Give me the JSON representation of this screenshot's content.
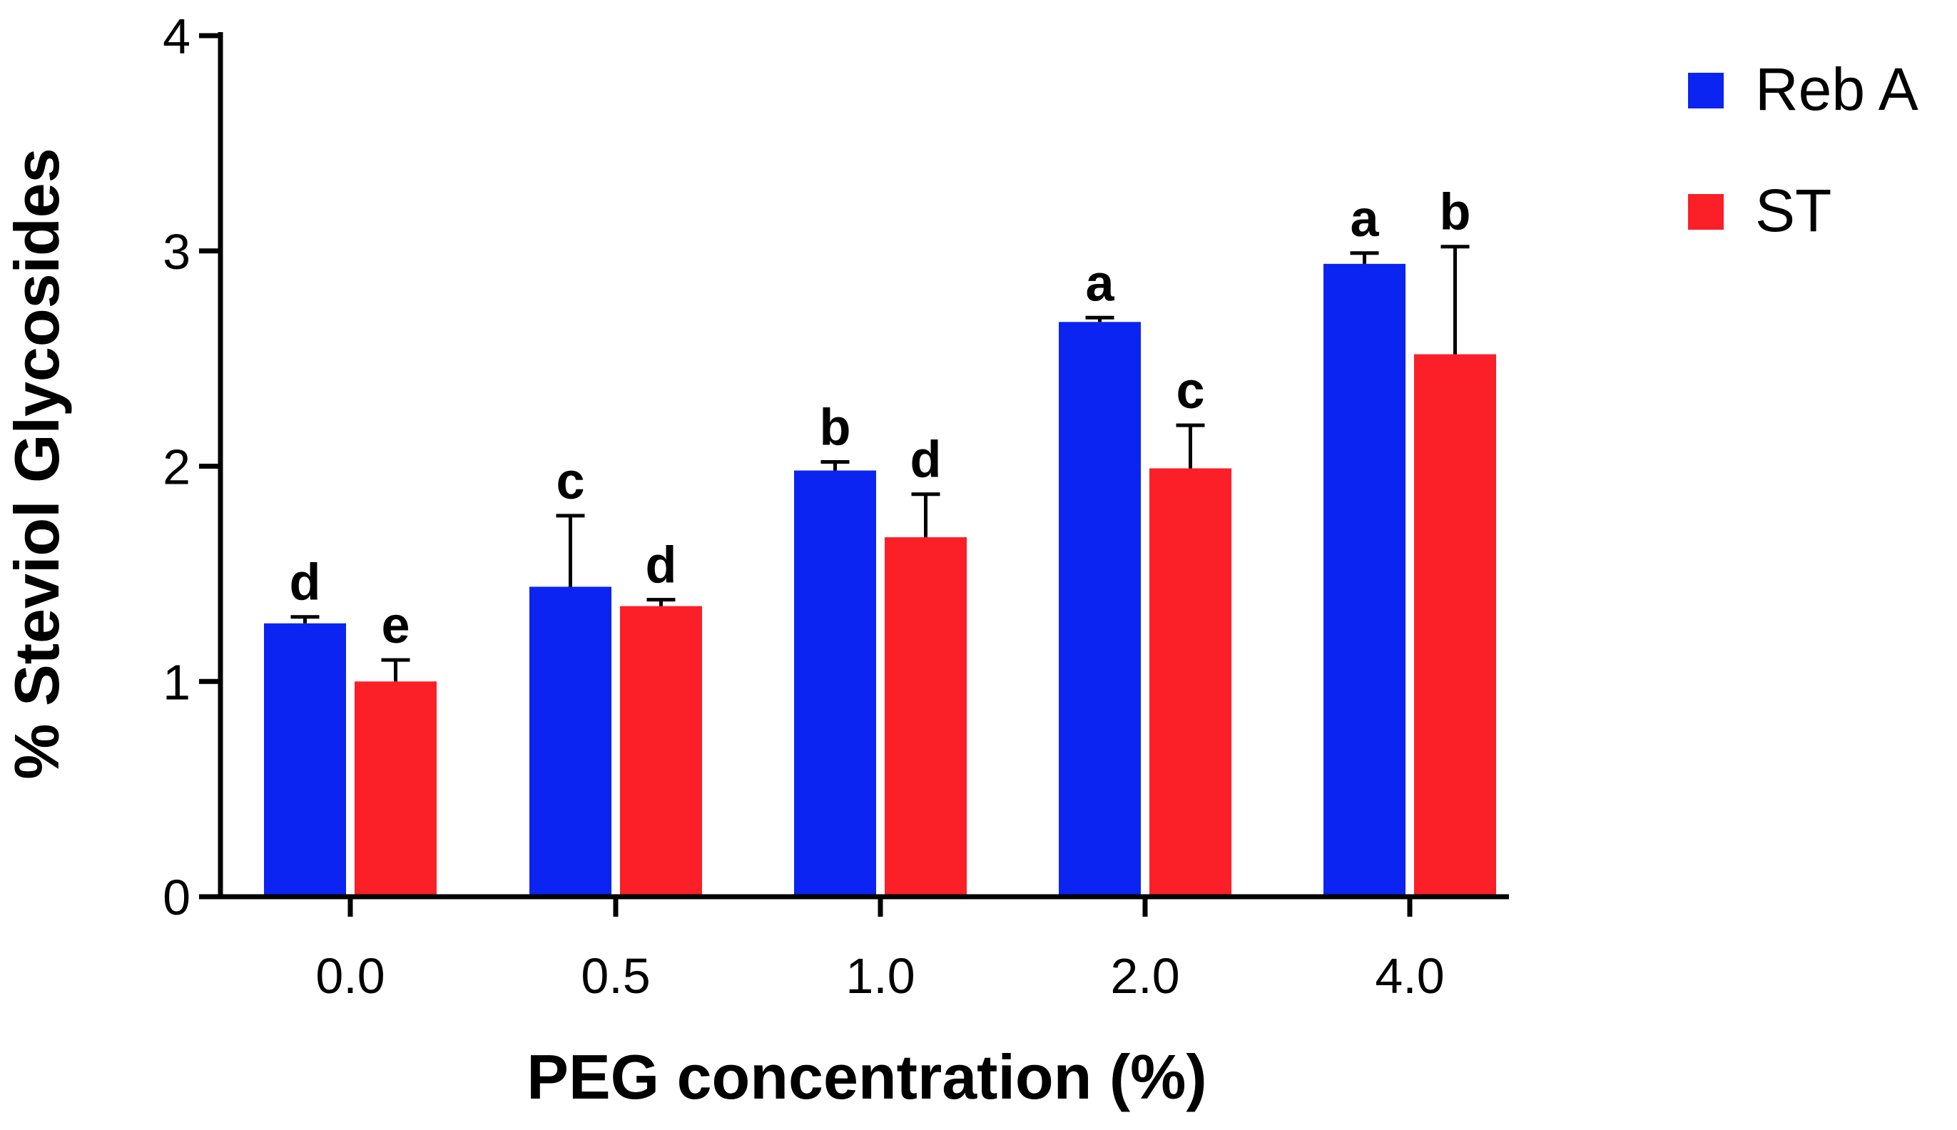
{
  "chart_data": {
    "type": "bar",
    "title": "",
    "xlabel": "PEG concentration (%)",
    "ylabel": "% Steviol Glycosides",
    "ylim": [
      0,
      4
    ],
    "yticks": [
      "0",
      "1",
      "2",
      "3",
      "4"
    ],
    "categories": [
      "0.0",
      "0.5",
      "1.0",
      "2.0",
      "4.0"
    ],
    "legend_position": "top-right",
    "series": [
      {
        "name": "Reb A",
        "color": "#0b24f2",
        "values": [
          1.27,
          1.44,
          1.98,
          2.67,
          2.94
        ],
        "errors": [
          0.03,
          0.33,
          0.04,
          0.02,
          0.05
        ],
        "letters": [
          "d",
          "c",
          "b",
          "a",
          "a"
        ]
      },
      {
        "name": "ST",
        "color": "#fb1f27",
        "values": [
          1.0,
          1.35,
          1.67,
          1.99,
          2.52
        ],
        "errors": [
          0.1,
          0.03,
          0.2,
          0.2,
          0.5
        ],
        "letters": [
          "e",
          "d",
          "d",
          "c",
          "b"
        ]
      }
    ]
  }
}
